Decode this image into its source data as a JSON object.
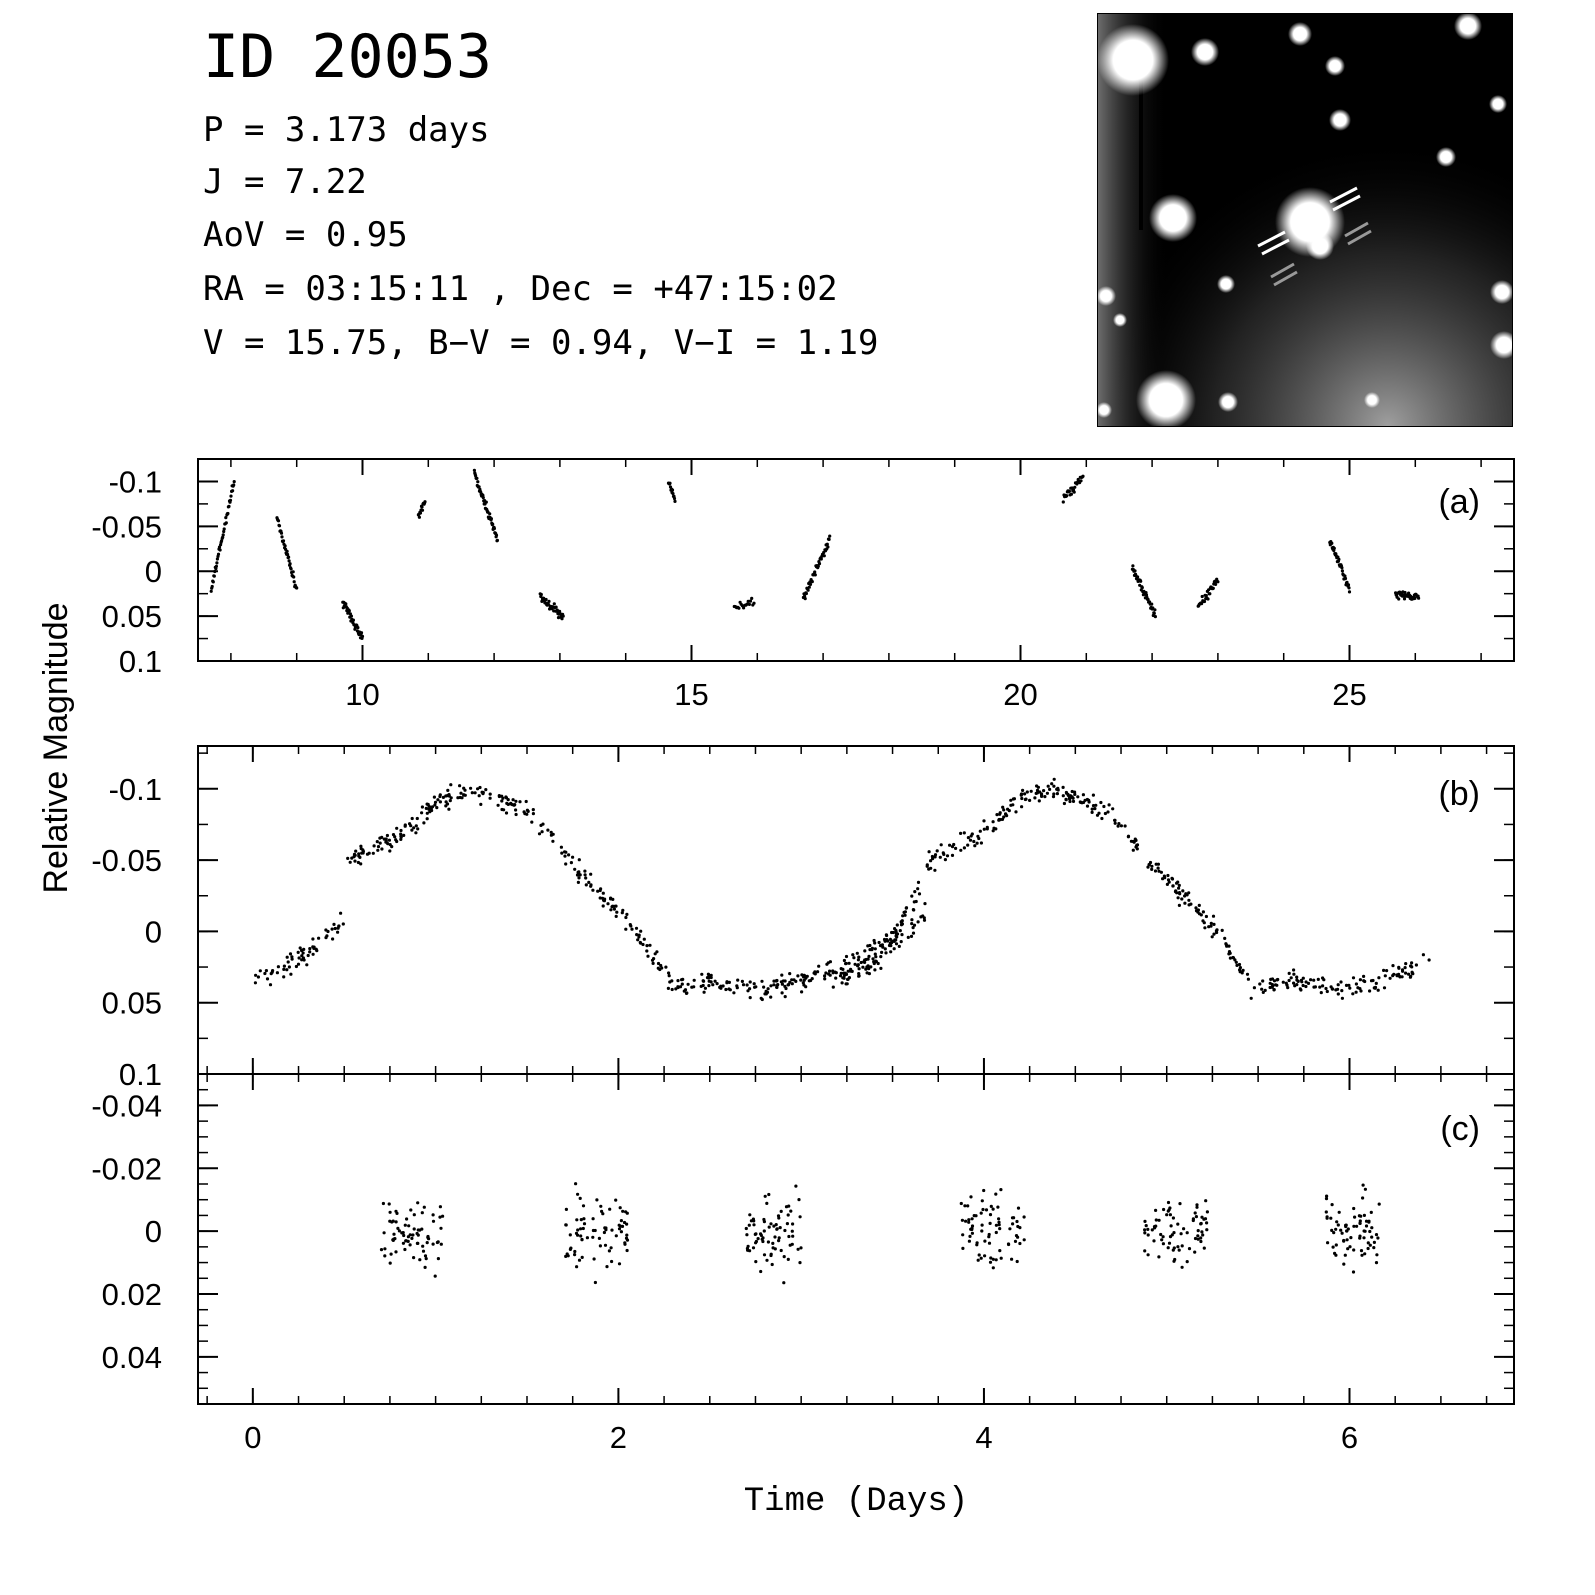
{
  "header": {
    "title": "ID 20053",
    "lines": [
      "P = 3.173 days",
      "J = 7.22",
      "AoV = 0.95",
      "RA = 03:15:11 , Dec = +47:15:02",
      "V = 15.75, B−V = 0.94, V−I = 1.19"
    ]
  },
  "colors": {
    "ink": "#000000",
    "background": "#ffffff",
    "finder_bg": "#000000",
    "finder_star": "#ffffff"
  },
  "finder_chart": {
    "description_icon": "finder-star-field-image"
  },
  "chart_data": [
    {
      "type": "scatter",
      "panel_label": "(a)",
      "xlabel": "",
      "ylabel": "Relative Magnitude",
      "xlim": [
        7.5,
        27.5
      ],
      "ylim": [
        0.1,
        -0.125
      ],
      "x_ticks": [
        10,
        15,
        20,
        25
      ],
      "x_tick_labels": [
        "10",
        "15",
        "20",
        "25"
      ],
      "y_ticks": [
        -0.1,
        -0.05,
        0,
        0.05,
        0.1
      ],
      "y_tick_labels": [
        "-0.1",
        "-0.05",
        "0",
        "0.05",
        "0.1"
      ],
      "segments": [
        {
          "t0": 7.7,
          "t1": 8.05,
          "m0": 0.02,
          "m1": -0.1,
          "n": 45
        },
        {
          "t0": 8.7,
          "t1": 9.0,
          "m0": -0.06,
          "m1": 0.02,
          "n": 40
        },
        {
          "t0": 9.7,
          "t1": 10.0,
          "m0": 0.035,
          "m1": 0.075,
          "n": 40
        },
        {
          "t0": 10.85,
          "t1": 10.95,
          "m0": -0.06,
          "m1": -0.08,
          "n": 14
        },
        {
          "t0": 11.7,
          "t1": 12.05,
          "m0": -0.11,
          "m1": -0.035,
          "n": 55
        },
        {
          "t0": 12.7,
          "t1": 13.05,
          "m0": 0.03,
          "m1": 0.05,
          "n": 40
        },
        {
          "t0": 14.65,
          "t1": 14.75,
          "m0": -0.1,
          "m1": -0.08,
          "n": 14
        },
        {
          "t0": 15.65,
          "t1": 15.95,
          "m0": 0.04,
          "m1": 0.035,
          "n": 18
        },
        {
          "t0": 16.7,
          "t1": 17.1,
          "m0": 0.03,
          "m1": -0.035,
          "n": 45
        },
        {
          "t0": 20.65,
          "t1": 20.95,
          "m0": -0.08,
          "m1": -0.105,
          "n": 30
        },
        {
          "t0": 21.7,
          "t1": 22.05,
          "m0": -0.005,
          "m1": 0.05,
          "n": 45
        },
        {
          "t0": 22.7,
          "t1": 23.0,
          "m0": 0.04,
          "m1": 0.01,
          "n": 35
        },
        {
          "t0": 24.7,
          "t1": 25.0,
          "m0": -0.035,
          "m1": 0.02,
          "n": 40
        },
        {
          "t0": 25.7,
          "t1": 26.05,
          "m0": 0.025,
          "m1": 0.03,
          "n": 45
        }
      ]
    },
    {
      "type": "scatter",
      "panel_label": "(b)",
      "xlabel": "",
      "ylabel": "Relative Magnitude",
      "xlim": [
        -0.3,
        6.9
      ],
      "ylim": [
        0.1,
        -0.13
      ],
      "x_ticks": [
        0,
        2,
        4,
        6
      ],
      "y_ticks": [
        -0.1,
        -0.05,
        0,
        0.05,
        0.1
      ],
      "y_tick_labels": [
        "-0.1",
        "-0.05",
        "0",
        "0.05",
        "0.1"
      ],
      "period_days": 3.173,
      "phase_curve": [
        [
          0.0,
          0.035
        ],
        [
          0.25,
          0.02
        ],
        [
          0.5,
          -0.01
        ],
        [
          0.52,
          -0.05
        ],
        [
          0.85,
          -0.07
        ],
        [
          1.0,
          -0.09
        ],
        [
          1.2,
          -0.1
        ],
        [
          1.5,
          -0.085
        ],
        [
          1.8,
          -0.04
        ],
        [
          2.1,
          0.0
        ],
        [
          2.3,
          0.04
        ],
        [
          2.5,
          0.035
        ],
        [
          2.8,
          0.04
        ],
        [
          3.0,
          0.035
        ],
        [
          3.3,
          0.02
        ],
        [
          3.5,
          0.005
        ],
        [
          3.65,
          -0.03
        ]
      ]
    },
    {
      "type": "scatter",
      "panel_label": "(c)",
      "xlabel": "Time (Days)",
      "ylabel": "",
      "xlim": [
        -0.3,
        6.9
      ],
      "ylim": [
        0.055,
        -0.05
      ],
      "x_ticks": [
        0,
        2,
        4,
        6
      ],
      "x_tick_labels": [
        "0",
        "2",
        "4",
        "6"
      ],
      "y_ticks": [
        -0.04,
        -0.02,
        0,
        0.02,
        0.04
      ],
      "y_tick_labels": [
        "-0.04",
        "-0.02",
        "0",
        "0.02",
        "0.04"
      ],
      "clusters": [
        {
          "t0": 0.7,
          "t1": 1.05
        },
        {
          "t0": 1.7,
          "t1": 2.05
        },
        {
          "t0": 2.7,
          "t1": 3.0
        }
      ],
      "period_days": 3.173
    }
  ]
}
